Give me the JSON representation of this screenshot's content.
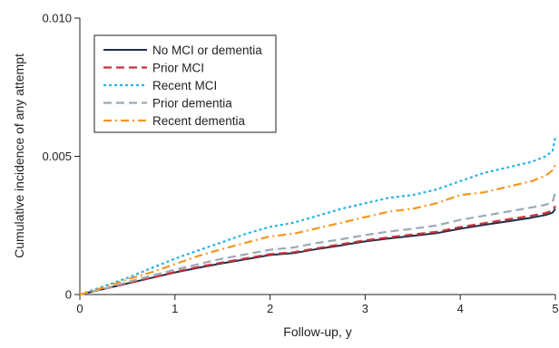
{
  "chart_data": {
    "type": "line",
    "title": "",
    "xlabel": "Follow-up, y",
    "ylabel": "Cumulative incidence of any attempt",
    "xlim": [
      0,
      5
    ],
    "ylim": [
      0,
      0.01
    ],
    "x_ticks": [
      0,
      1,
      2,
      3,
      4,
      5
    ],
    "x_tick_labels": [
      "0",
      "1",
      "2",
      "3",
      "4",
      "5"
    ],
    "y_ticks": [
      0,
      0.005,
      0.01
    ],
    "y_tick_labels": [
      "0",
      "0.005",
      "0.010"
    ],
    "grid": false,
    "legend_position": "top-left",
    "series": [
      {
        "name": "No MCI or dementia",
        "color": "#1f2f45",
        "dash": "solid",
        "x": [
          0,
          0.25,
          0.5,
          0.75,
          1,
          1.25,
          1.5,
          1.75,
          2,
          2.25,
          2.5,
          2.75,
          3,
          3.25,
          3.5,
          3.75,
          4,
          4.25,
          4.5,
          4.75,
          4.9,
          4.97,
          5
        ],
        "y": [
          0,
          0.0002,
          0.0004,
          0.0006,
          0.0008,
          0.00097,
          0.00113,
          0.00128,
          0.00143,
          0.0015,
          0.00165,
          0.00178,
          0.00192,
          0.00203,
          0.00212,
          0.00222,
          0.00238,
          0.00252,
          0.00265,
          0.00278,
          0.00288,
          0.00296,
          0.0031
        ]
      },
      {
        "name": "Prior MCI",
        "color": "#c8323c",
        "dash": "long",
        "x": [
          0,
          0.25,
          0.5,
          0.75,
          1,
          1.25,
          1.5,
          1.75,
          2,
          2.25,
          2.5,
          2.75,
          3,
          3.25,
          3.5,
          3.75,
          4,
          4.25,
          4.5,
          4.75,
          4.9,
          4.97,
          5
        ],
        "y": [
          0,
          0.0002,
          0.0004,
          0.0006,
          0.00082,
          0.001,
          0.00116,
          0.00131,
          0.00146,
          0.00153,
          0.00168,
          0.00182,
          0.00196,
          0.00207,
          0.00217,
          0.00227,
          0.00244,
          0.00258,
          0.00272,
          0.00285,
          0.00295,
          0.00304,
          0.0032
        ]
      },
      {
        "name": "Recent MCI",
        "color": "#2ab3e6",
        "dash": "dot",
        "x": [
          0,
          0.25,
          0.5,
          0.75,
          1,
          1.25,
          1.5,
          1.75,
          2,
          2.25,
          2.5,
          2.75,
          3,
          3.25,
          3.5,
          3.75,
          4,
          4.25,
          4.5,
          4.75,
          4.9,
          4.97,
          5
        ],
        "y": [
          0,
          0.0003,
          0.0006,
          0.00095,
          0.0013,
          0.0016,
          0.0019,
          0.0022,
          0.00245,
          0.0026,
          0.00285,
          0.0031,
          0.0033,
          0.0035,
          0.0036,
          0.0038,
          0.0041,
          0.0044,
          0.0046,
          0.0048,
          0.005,
          0.0052,
          0.0057
        ]
      },
      {
        "name": "Prior dementia",
        "color": "#9aabb7",
        "dash": "long",
        "x": [
          0,
          0.25,
          0.5,
          0.75,
          1,
          1.25,
          1.5,
          1.75,
          2,
          2.25,
          2.5,
          2.75,
          3,
          3.25,
          3.5,
          3.75,
          4,
          4.25,
          4.5,
          4.75,
          4.9,
          4.97,
          5
        ],
        "y": [
          0,
          0.0002,
          0.00045,
          0.00068,
          0.0009,
          0.0011,
          0.0013,
          0.00146,
          0.00162,
          0.0017,
          0.00187,
          0.002,
          0.00215,
          0.00228,
          0.00238,
          0.0025,
          0.0027,
          0.00285,
          0.003,
          0.00315,
          0.00325,
          0.00335,
          0.0037
        ]
      },
      {
        "name": "Recent dementia",
        "color": "#f5961e",
        "dash": "dashdot",
        "x": [
          0,
          0.25,
          0.5,
          0.75,
          1,
          1.25,
          1.5,
          1.75,
          2,
          2.25,
          2.5,
          2.75,
          3,
          3.25,
          3.5,
          3.75,
          4,
          4.25,
          4.5,
          4.75,
          4.9,
          4.97,
          5
        ],
        "y": [
          0,
          0.00025,
          0.00055,
          0.0008,
          0.0011,
          0.0014,
          0.00165,
          0.00188,
          0.0021,
          0.0022,
          0.0024,
          0.0026,
          0.0028,
          0.003,
          0.0031,
          0.0033,
          0.0036,
          0.0037,
          0.0039,
          0.0041,
          0.0043,
          0.0045,
          0.0047
        ]
      }
    ]
  }
}
